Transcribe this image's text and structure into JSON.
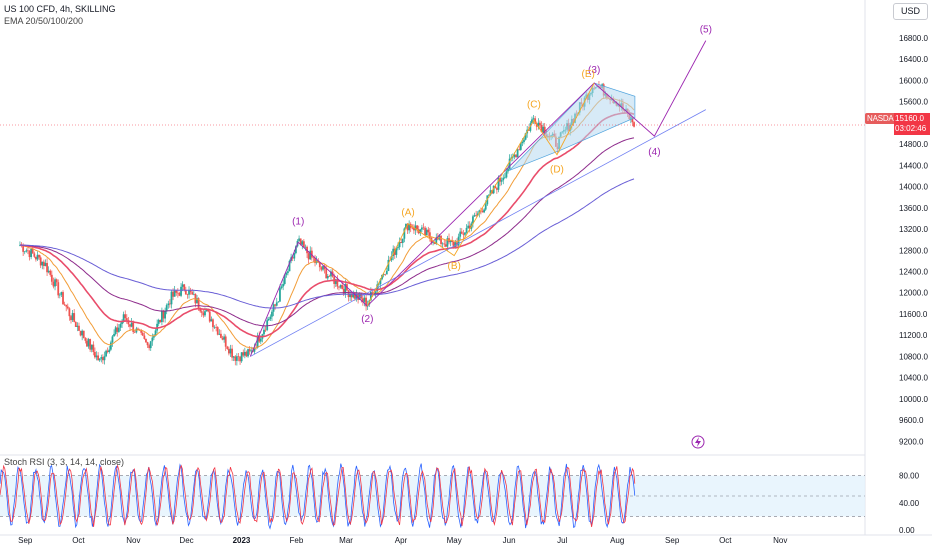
{
  "header": {
    "title": "US 100 CFD, 4h, SKILLING",
    "indicator": "EMA 20/50/100/200",
    "currency_button": "USD"
  },
  "price_marker": {
    "symbol": "NASDAQ",
    "price": "15160.0",
    "countdown": "03:02:46"
  },
  "oscillator": {
    "title": "Stoch RSI (3, 3, 14, 14, close)",
    "y_ticks": [
      "80.00",
      "40.00",
      "0.00"
    ]
  },
  "colors": {
    "candles": "#2e7d32",
    "ema20": "#f29d38",
    "ema50": "#e94d6b",
    "ema100": "#8e2c8c",
    "ema200": "#6a5fd6",
    "wave_primary": "#9c27b0",
    "wave_abc": "#f5a623",
    "trendline": "#6f7ff2",
    "channel_fill": "#b7d9f0",
    "stoch_k": "#2962ff",
    "stoch_d": "#f23645",
    "price_line": "#f23645"
  },
  "chart_data": {
    "type": "candlestick",
    "title": "US 100 CFD, 4h, SKILLING",
    "x_ticks": [
      "Sep",
      "Oct",
      "Nov",
      "Dec",
      "2023",
      "Feb",
      "Mar",
      "Apr",
      "May",
      "Jun",
      "Jul",
      "Aug",
      "Sep",
      "Oct",
      "Nov"
    ],
    "y_ticks": [
      "16800.0",
      "16400.0",
      "16000.0",
      "15600.0",
      "15200.0",
      "14800.0",
      "14400.0",
      "14000.0",
      "13600.0",
      "13200.0",
      "12800.0",
      "12400.0",
      "12000.0",
      "11600.0",
      "11200.0",
      "10800.0",
      "10400.0",
      "10000.0",
      "9600.0",
      "9200.0"
    ],
    "ylim": [
      9000,
      17100
    ],
    "legend": [
      "EMA 20/50/100/200"
    ],
    "price_path": [
      {
        "date": "2022-08-29",
        "close": 12900
      },
      {
        "date": "2022-09-12",
        "close": 12550
      },
      {
        "date": "2022-09-26",
        "close": 11600
      },
      {
        "date": "2022-10-13",
        "close": 10700
      },
      {
        "date": "2022-10-27",
        "close": 11550
      },
      {
        "date": "2022-11-09",
        "close": 11000
      },
      {
        "date": "2022-11-22",
        "close": 11900
      },
      {
        "date": "2022-11-30",
        "close": 12100
      },
      {
        "date": "2022-12-15",
        "close": 11500
      },
      {
        "date": "2022-12-28",
        "close": 10800
      },
      {
        "date": "2023-01-06",
        "close": 10850
      },
      {
        "date": "2023-01-20",
        "close": 11750
      },
      {
        "date": "2023-02-02",
        "close": 12950
      },
      {
        "date": "2023-02-15",
        "close": 12450
      },
      {
        "date": "2023-03-01",
        "close": 12050
      },
      {
        "date": "2023-03-13",
        "close": 11800
      },
      {
        "date": "2023-03-27",
        "close": 12700
      },
      {
        "date": "2023-04-05",
        "close": 13300
      },
      {
        "date": "2023-04-20",
        "close": 13000
      },
      {
        "date": "2023-05-01",
        "close": 12900
      },
      {
        "date": "2023-05-18",
        "close": 13650
      },
      {
        "date": "2023-06-01",
        "close": 14400
      },
      {
        "date": "2023-06-15",
        "close": 15300
      },
      {
        "date": "2023-06-28",
        "close": 14800
      },
      {
        "date": "2023-07-13",
        "close": 15600
      },
      {
        "date": "2023-07-19",
        "close": 15950
      },
      {
        "date": "2023-08-01",
        "close": 15600
      },
      {
        "date": "2023-08-11",
        "close": 15160
      }
    ],
    "wave_labels": [
      {
        "label": "(1)",
        "date": "2023-02-02",
        "price": 12950
      },
      {
        "label": "(2)",
        "date": "2023-03-13",
        "price": 11750
      },
      {
        "label": "(3)",
        "date": "2023-07-19",
        "price": 15950
      },
      {
        "label": "(4)",
        "date": "2023-08-22",
        "price": 14900
      },
      {
        "label": "(5)",
        "date": "2023-09-20",
        "price": 16750
      }
    ],
    "sub_wave_labels": [
      {
        "label": "(A)",
        "date": "2023-04-05",
        "price": 13300
      },
      {
        "label": "(B)",
        "date": "2023-05-01",
        "price": 12750
      },
      {
        "label": "(C)",
        "date": "2023-06-15",
        "price": 15300
      },
      {
        "label": "(D)",
        "date": "2023-06-28",
        "price": 14600
      },
      {
        "label": "(E)",
        "date": "2023-07-19",
        "price": 15950
      }
    ]
  }
}
